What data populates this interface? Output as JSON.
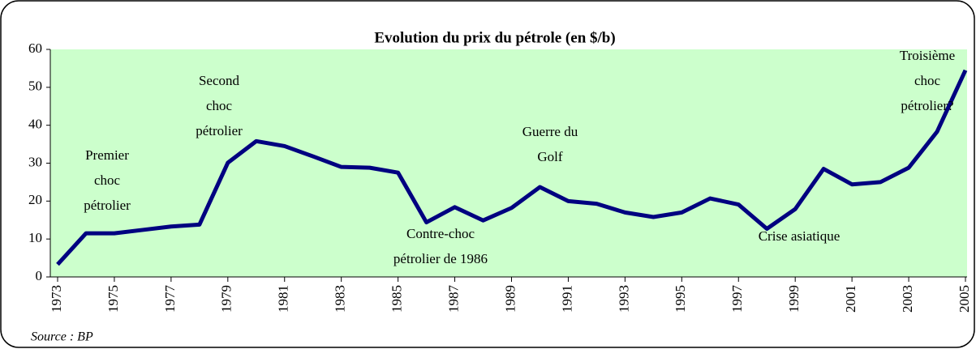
{
  "chart_data": {
    "type": "line",
    "title": "Evolution du prix du pétrole (en $/b)",
    "x": [
      1973,
      1974,
      1975,
      1976,
      1977,
      1978,
      1979,
      1980,
      1981,
      1982,
      1983,
      1984,
      1985,
      1986,
      1987,
      1988,
      1989,
      1990,
      1991,
      1992,
      1993,
      1994,
      1995,
      1996,
      1997,
      1998,
      1999,
      2000,
      2001,
      2002,
      2003,
      2004,
      2005
    ],
    "series": [
      {
        "name": "Prix du pétrole",
        "color": "#000080",
        "values": [
          3.3,
          11.5,
          11.5,
          12.4,
          13.3,
          13.8,
          30.1,
          35.8,
          34.5,
          31.8,
          29,
          28.8,
          27.5,
          14.4,
          18.4,
          14.9,
          18.2,
          23.7,
          20,
          19.3,
          17,
          15.8,
          17,
          20.7,
          19.1,
          12.7,
          17.9,
          28.5,
          24.4,
          25,
          28.8,
          38.3,
          54.5
        ]
      }
    ],
    "xlim": [
      1973,
      2005
    ],
    "xticks": [
      1973,
      1975,
      1977,
      1979,
      1981,
      1983,
      1985,
      1987,
      1989,
      1991,
      1993,
      1995,
      1997,
      1999,
      2001,
      2003,
      2005
    ],
    "ylim": [
      0,
      60
    ],
    "yticks": [
      0,
      10,
      20,
      30,
      40,
      50,
      60
    ],
    "annotations": [
      [
        "Premier",
        "choc",
        "pétrolier"
      ],
      [
        "Second",
        "choc",
        "pétrolier"
      ],
      [
        "Contre-choc",
        "pétrolier de 1986"
      ],
      [
        "Guerre du",
        "Golf"
      ],
      [
        "Crise asiatique"
      ],
      [
        "Troisième",
        "choc",
        "pétrolier?"
      ]
    ],
    "source": "Source : BP"
  }
}
